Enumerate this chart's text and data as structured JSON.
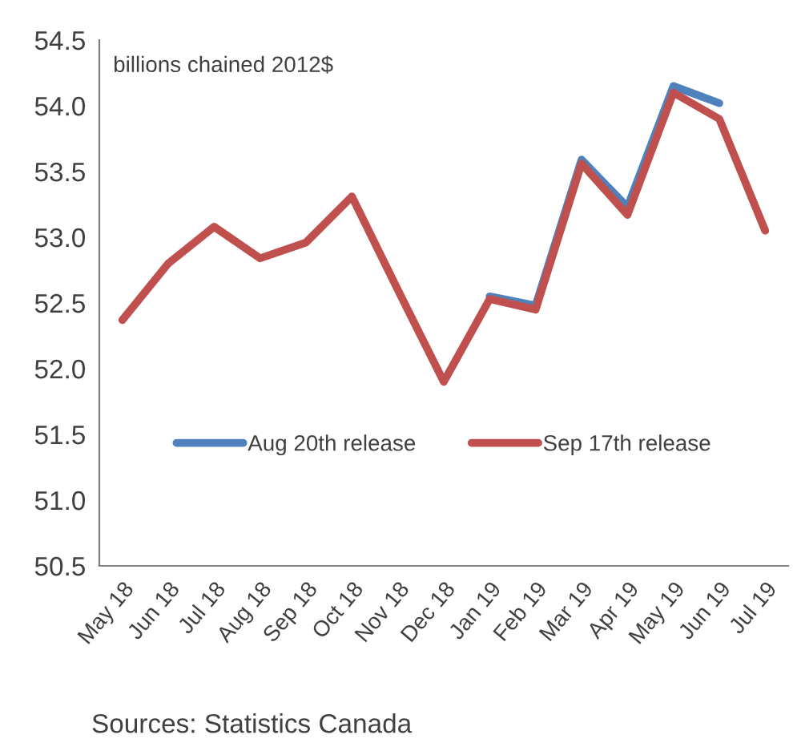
{
  "chart_data": {
    "type": "line",
    "categories": [
      "May 18",
      "Jun 18",
      "Jul 18",
      "Aug 18",
      "Sep 18",
      "Oct 18",
      "Nov 18",
      "Dec 18",
      "Jan 19",
      "Feb 19",
      "Mar 19",
      "Apr 19",
      "May 19",
      "Jun 19",
      "Jul 19"
    ],
    "series": [
      {
        "name": "Aug 20th release",
        "color": "#4f81bd",
        "values": [
          null,
          null,
          null,
          null,
          null,
          null,
          null,
          null,
          52.55,
          52.48,
          53.59,
          53.23,
          54.15,
          54.02,
          null
        ]
      },
      {
        "name": "Sep 17th release",
        "color": "#c0504d",
        "values": [
          52.37,
          52.8,
          53.08,
          52.84,
          52.96,
          53.31,
          52.6,
          51.9,
          52.53,
          52.45,
          53.56,
          53.17,
          54.1,
          53.9,
          53.05
        ]
      }
    ],
    "ylim": [
      50.5,
      54.5
    ],
    "yticks": [
      {
        "value": 50.5,
        "label": "50.5"
      },
      {
        "value": 51,
        "label": "51.0"
      },
      {
        "value": 51.5,
        "label": "51.5"
      },
      {
        "value": 52,
        "label": "52.0"
      },
      {
        "value": 52.5,
        "label": "52.5"
      },
      {
        "value": 53,
        "label": "53.0"
      },
      {
        "value": 53.5,
        "label": "53.5"
      },
      {
        "value": 54,
        "label": "54.0"
      },
      {
        "value": 54.5,
        "label": "54.5"
      }
    ],
    "grid": false,
    "legend": "bottom",
    "marker": "none",
    "line_style": "solid",
    "annotations": [
      "billions chained 2012$",
      "Sources: Statistics Canada"
    ]
  }
}
